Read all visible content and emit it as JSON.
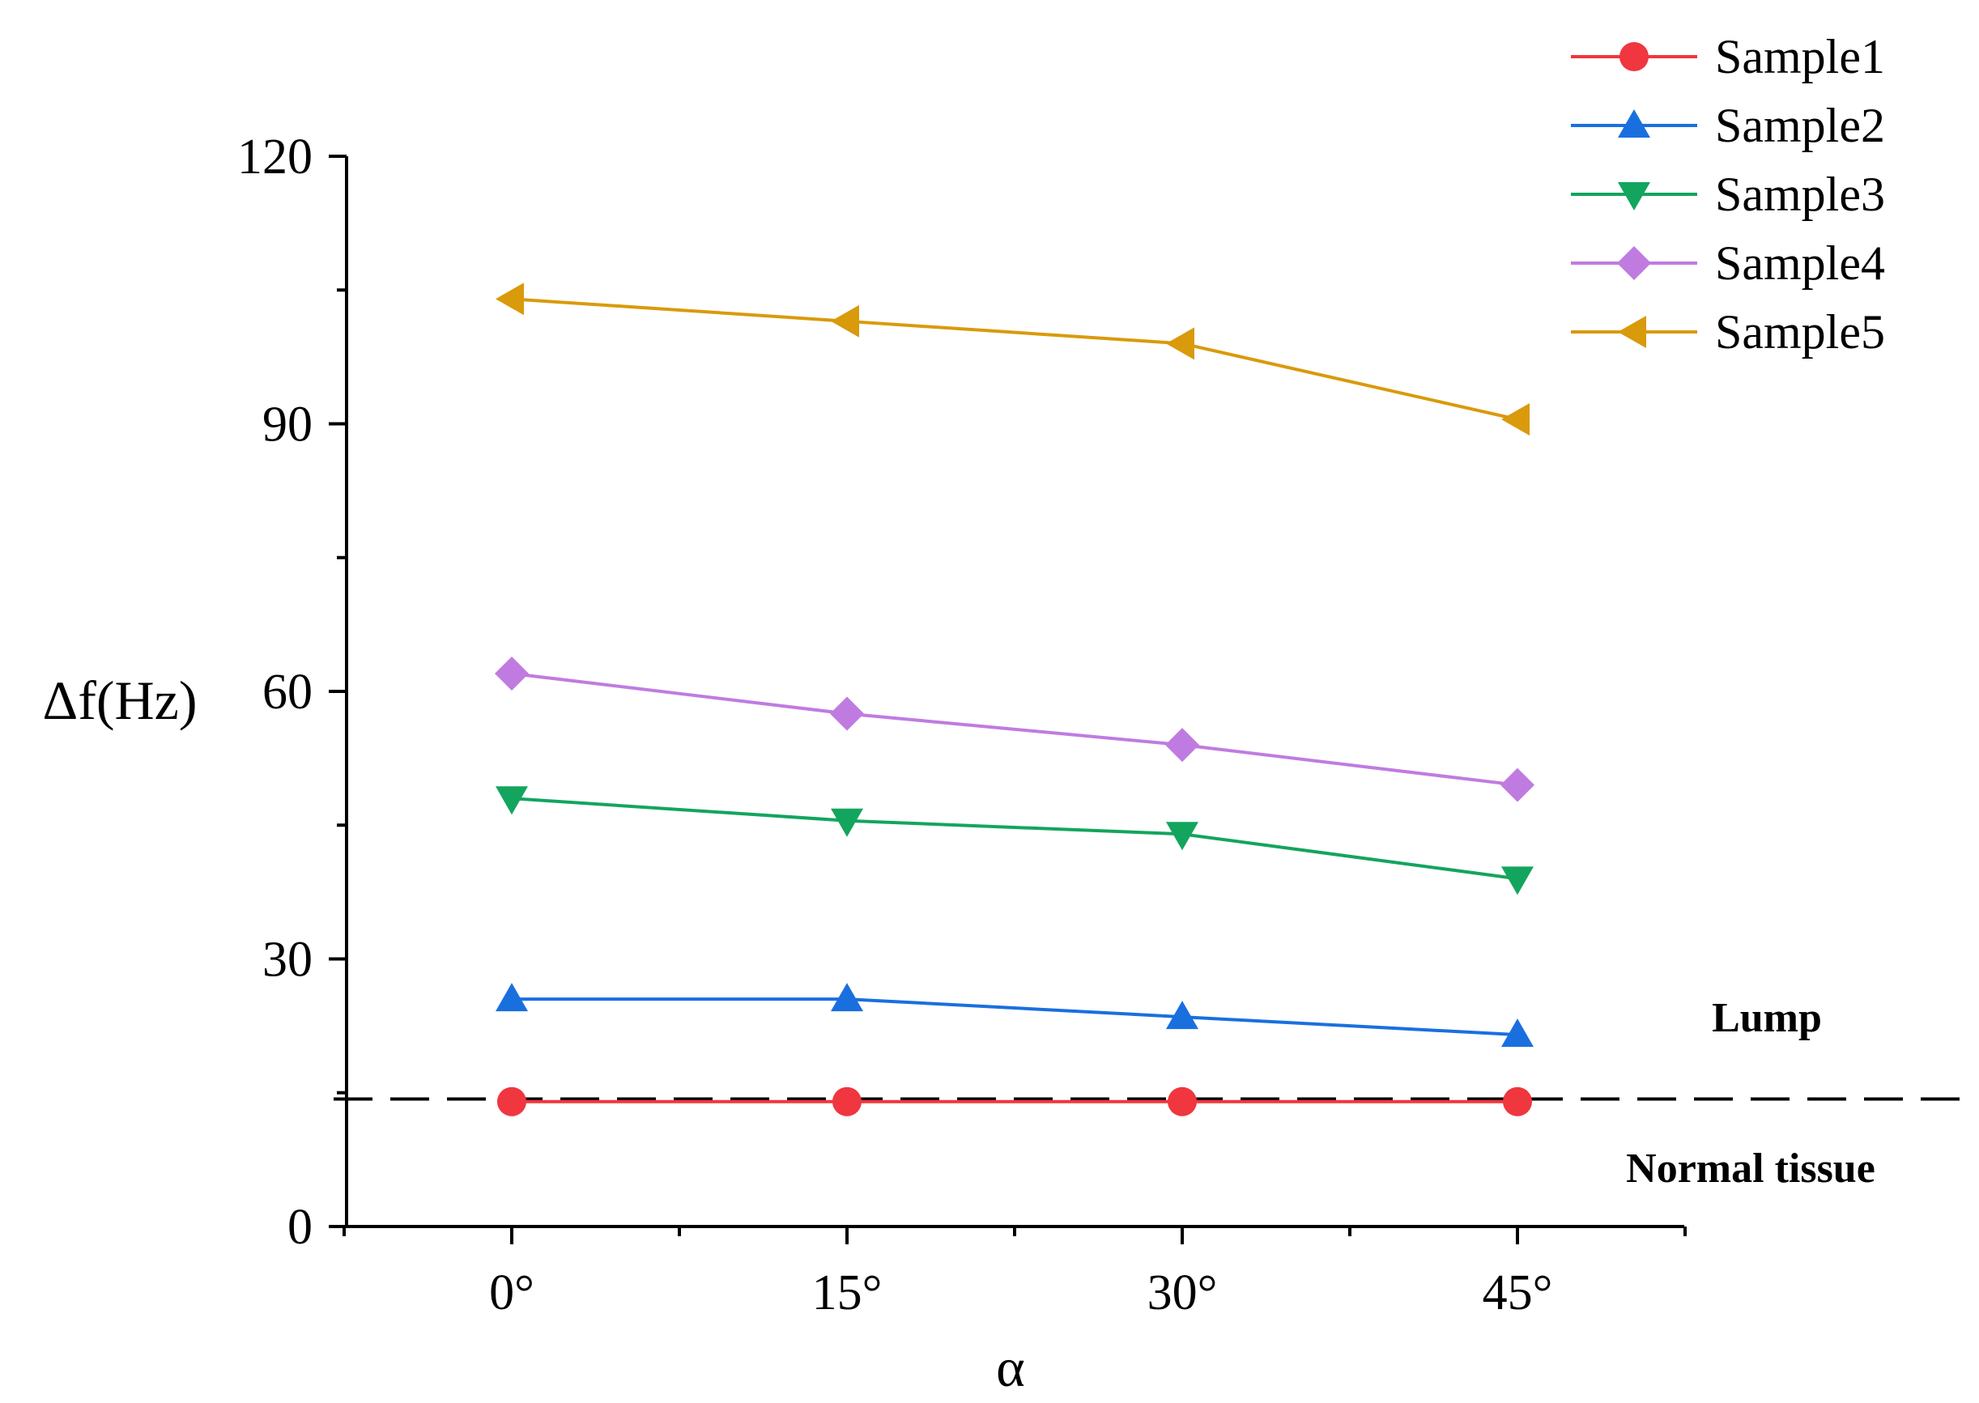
{
  "chart_data": {
    "type": "line",
    "title": "",
    "xlabel": "α",
    "ylabel": "Δf(Hz)",
    "categories": [
      "0°",
      "15°",
      "30°",
      "45°"
    ],
    "ylim": [
      0,
      120
    ],
    "yticks": [
      "0",
      "30",
      "60",
      "90",
      "120"
    ],
    "series": [
      {
        "name": "Sample1",
        "values": [
          14,
          14,
          14,
          14
        ],
        "color": "#f0363e",
        "marker": "circle"
      },
      {
        "name": "Sample2",
        "values": [
          25.5,
          25.5,
          23.5,
          21.5
        ],
        "color": "#1a6fdf",
        "marker": "triangle-up"
      },
      {
        "name": "Sample3",
        "values": [
          48,
          45.5,
          44,
          39
        ],
        "color": "#13a55d",
        "marker": "triangle-down"
      },
      {
        "name": "Sample4",
        "values": [
          62,
          57.5,
          54,
          49.5
        ],
        "color": "#c07be0",
        "marker": "diamond"
      },
      {
        "name": "Sample5",
        "values": [
          104,
          101.5,
          99,
          90.5
        ],
        "color": "#d99a0b",
        "marker": "triangle-left"
      }
    ],
    "threshold": {
      "value": 14.3,
      "style": "dashed",
      "color": "#000000"
    },
    "annotations": [
      {
        "text": "Lump",
        "position": "above-threshold-right"
      },
      {
        "text": "Normal tissue",
        "position": "below-threshold-right"
      }
    ],
    "legend_position": "top-right",
    "grid": false
  }
}
